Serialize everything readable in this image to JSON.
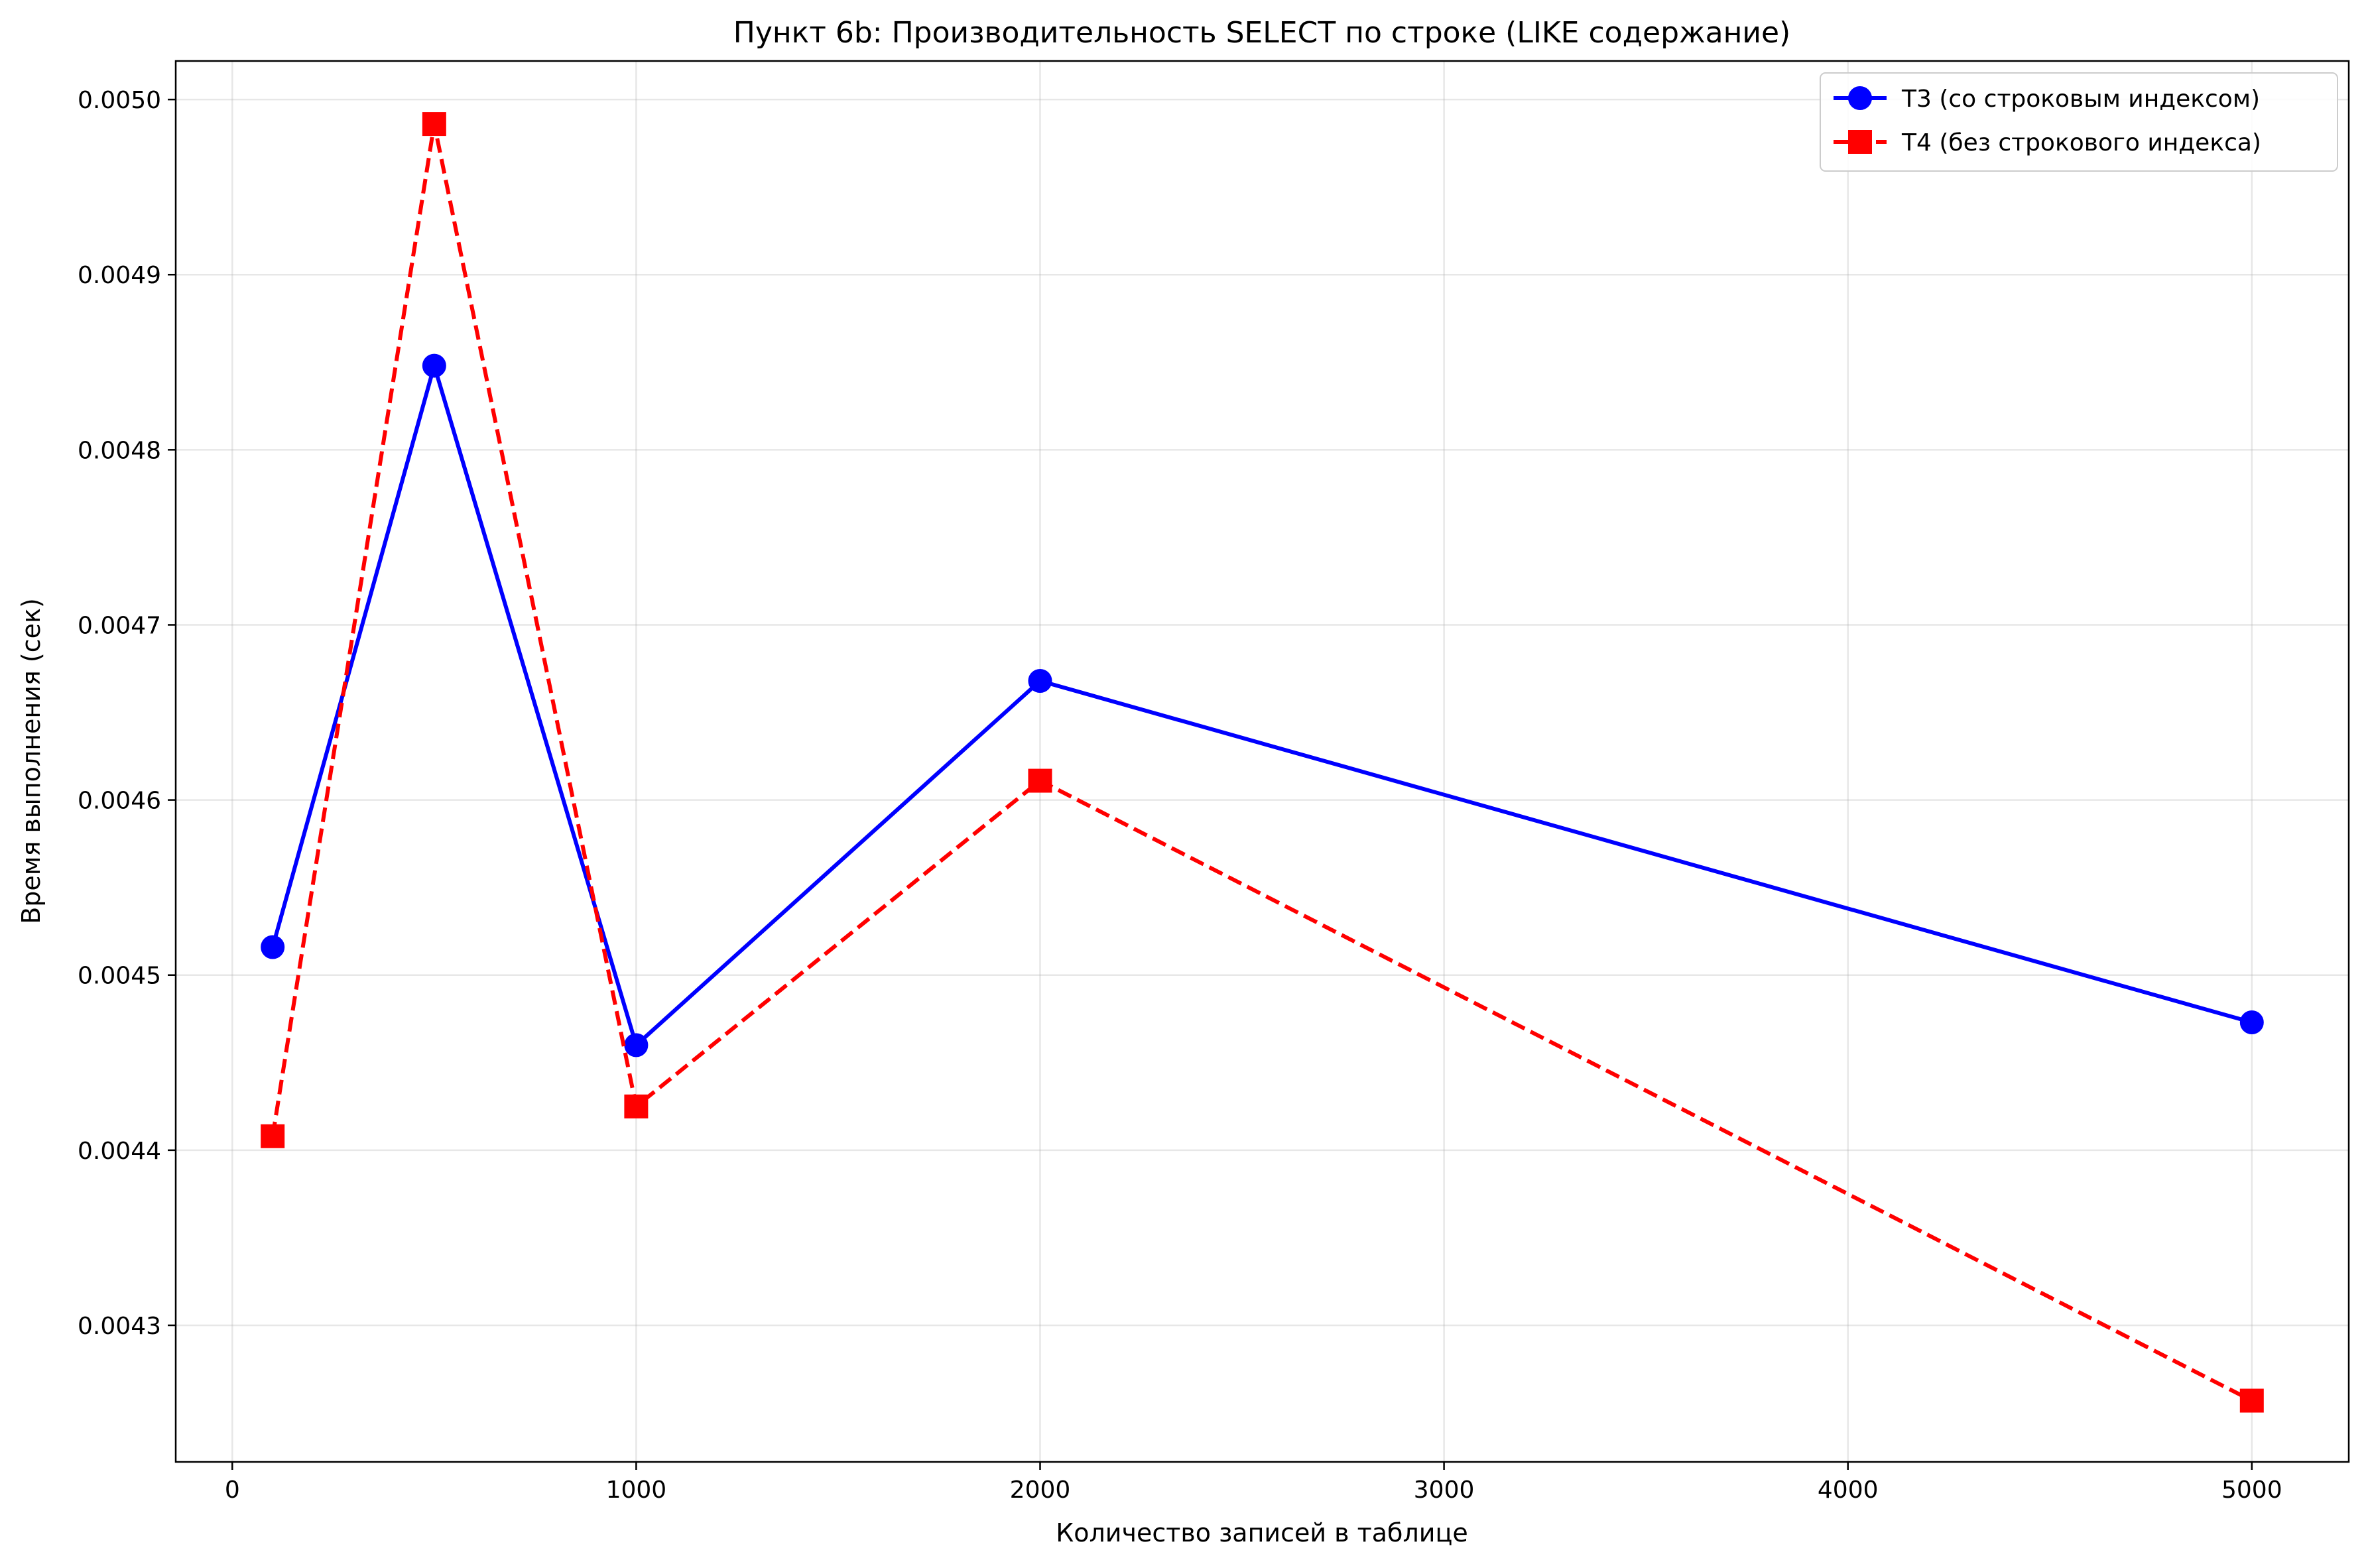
{
  "chart_data": {
    "type": "line",
    "title": "Пункт 6b: Производительность SELECT по строке (LIKE содержание)",
    "xlabel": "Количество записей в таблице",
    "ylabel": "Время выполнения (сек)",
    "xlim": [
      -140,
      5240
    ],
    "ylim": [
      0.004222,
      0.005022
    ],
    "xticks": [
      0,
      1000,
      2000,
      3000,
      4000,
      5000
    ],
    "yticks": [
      0.0043,
      0.0044,
      0.0045,
      0.0046,
      0.0047,
      0.0048,
      0.0049,
      0.005
    ],
    "xtick_labels": [
      "0",
      "1000",
      "2000",
      "3000",
      "4000",
      "5000"
    ],
    "ytick_labels": [
      "0.0043",
      "0.0044",
      "0.0045",
      "0.0046",
      "0.0047",
      "0.0048",
      "0.0049",
      "0.0050"
    ],
    "grid": true,
    "legend_position": "top-right",
    "x": [
      100,
      500,
      1000,
      2000,
      5000
    ],
    "series": [
      {
        "name": "T3 (со строковым индексом)",
        "values": [
          0.004516,
          0.004848,
          0.00446,
          0.004668,
          0.004473
        ],
        "color": "#0000ff",
        "line_style": "solid",
        "marker": "circle"
      },
      {
        "name": "T4 (без строкового индекса)",
        "values": [
          0.004408,
          0.004986,
          0.004425,
          0.004611,
          0.004257
        ],
        "color": "#ff0000",
        "line_style": "dashed",
        "marker": "square"
      }
    ]
  }
}
